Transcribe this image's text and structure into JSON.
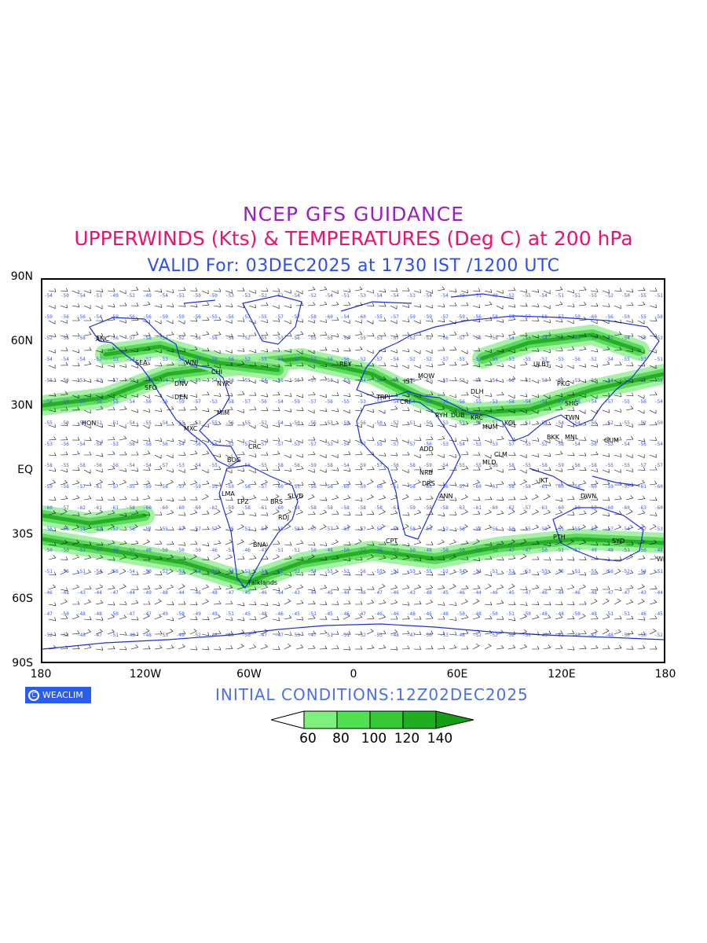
{
  "header": {
    "title": "NCEP GFS GUIDANCE",
    "subtitle": "UPPERWINDS (Kts) & TEMPERATURES (Deg C) at 200 hPa",
    "valid": "VALID For: 03DEC2025 at 1730 IST /1200 UTC"
  },
  "axes": {
    "y_labels": [
      "90N",
      "60N",
      "30N",
      "EQ",
      "30S",
      "60S",
      "90S"
    ],
    "x_labels": [
      "180",
      "120W",
      "60W",
      "0",
      "60E",
      "120E",
      "180"
    ]
  },
  "footer": {
    "logo_text": "WEACLIM",
    "initial": "INITIAL CONDITIONS:12Z02DEC2025"
  },
  "legend": {
    "labels": [
      "60",
      "80",
      "100",
      "120",
      "140"
    ],
    "colors": [
      "#ffffff",
      "#7df07d",
      "#4fe04f",
      "#35c935",
      "#1fae1f",
      "#12a012"
    ]
  },
  "colors": {
    "coast": "#1f2fe0",
    "temp_text": "#3a57ee",
    "jet_light": "#9bf09b",
    "jet_mid": "#55d655",
    "jet_dark": "#21a821"
  },
  "stations": [
    "ANC",
    "SEA",
    "WNI",
    "DNV",
    "SFO",
    "DEN",
    "CHI",
    "NYK",
    "MIM",
    "HON",
    "MXC",
    "BOG",
    "CRC",
    "LMA",
    "LPZ",
    "SLVD",
    "BRS",
    "RDJ",
    "BNA",
    "Falklands",
    "REY",
    "MOW",
    "IST",
    "TRPI",
    "CRI",
    "ADD",
    "NRB",
    "DRS",
    "ANN",
    "CPT",
    "RYH",
    "DUB",
    "KRC",
    "DLH",
    "ULBT",
    "PKG",
    "SHG",
    "TWN",
    "MNL",
    "GUM",
    "BKK",
    "KOL",
    "MUM",
    "CLM",
    "MLD",
    "JKT",
    "DWN",
    "PTH",
    "SYD",
    "WLT"
  ]
}
